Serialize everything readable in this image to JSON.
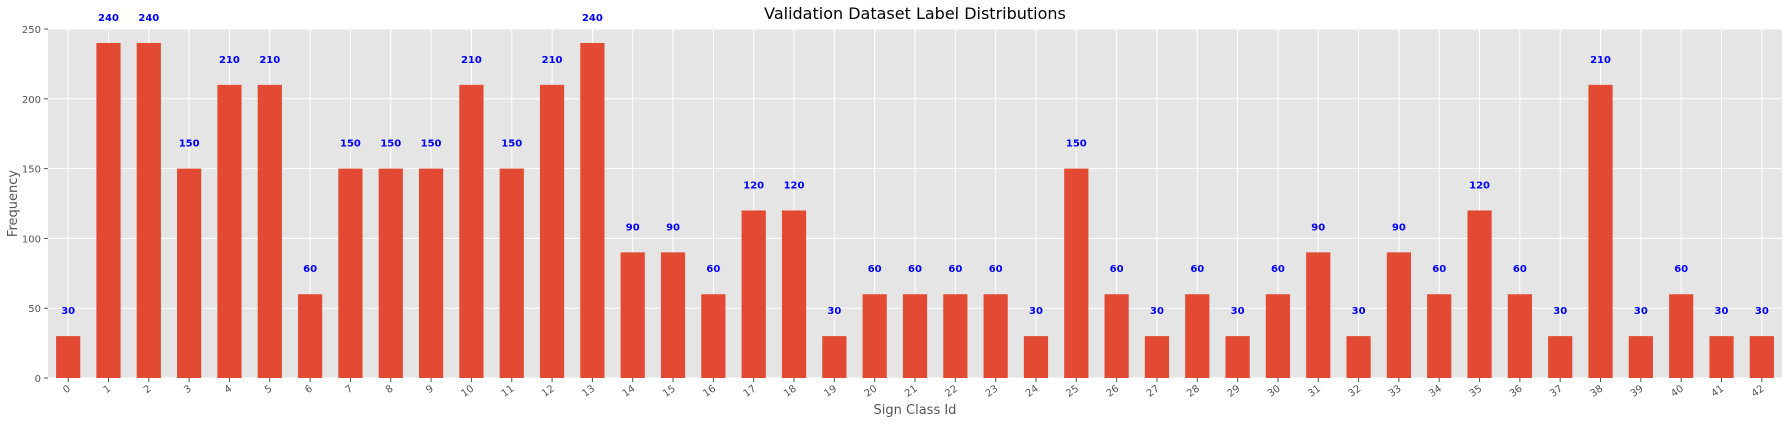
{
  "chart_data": {
    "type": "bar",
    "title": "Validation Dataset Label Distributions",
    "xlabel": "Sign Class Id",
    "ylabel": "Frequency",
    "ylim": [
      0,
      250
    ],
    "yticks": [
      0,
      50,
      100,
      150,
      200,
      250
    ],
    "grid": true,
    "categories": [
      "0",
      "1",
      "2",
      "3",
      "4",
      "5",
      "6",
      "7",
      "8",
      "9",
      "10",
      "11",
      "12",
      "13",
      "14",
      "15",
      "16",
      "17",
      "18",
      "19",
      "20",
      "21",
      "22",
      "23",
      "24",
      "25",
      "26",
      "27",
      "28",
      "29",
      "30",
      "31",
      "32",
      "33",
      "34",
      "35",
      "36",
      "37",
      "38",
      "39",
      "40",
      "41",
      "42"
    ],
    "values": [
      30,
      240,
      240,
      150,
      210,
      210,
      60,
      150,
      150,
      150,
      210,
      150,
      210,
      240,
      90,
      90,
      60,
      120,
      120,
      30,
      60,
      60,
      60,
      60,
      30,
      150,
      60,
      30,
      60,
      30,
      60,
      90,
      30,
      90,
      60,
      120,
      60,
      30,
      210,
      30,
      60,
      30,
      30
    ],
    "colors": {
      "bar": "#E24A33",
      "plot_bg": "#E5E5E5",
      "grid": "#FFFFFF",
      "data_label": "#0000FF"
    }
  }
}
